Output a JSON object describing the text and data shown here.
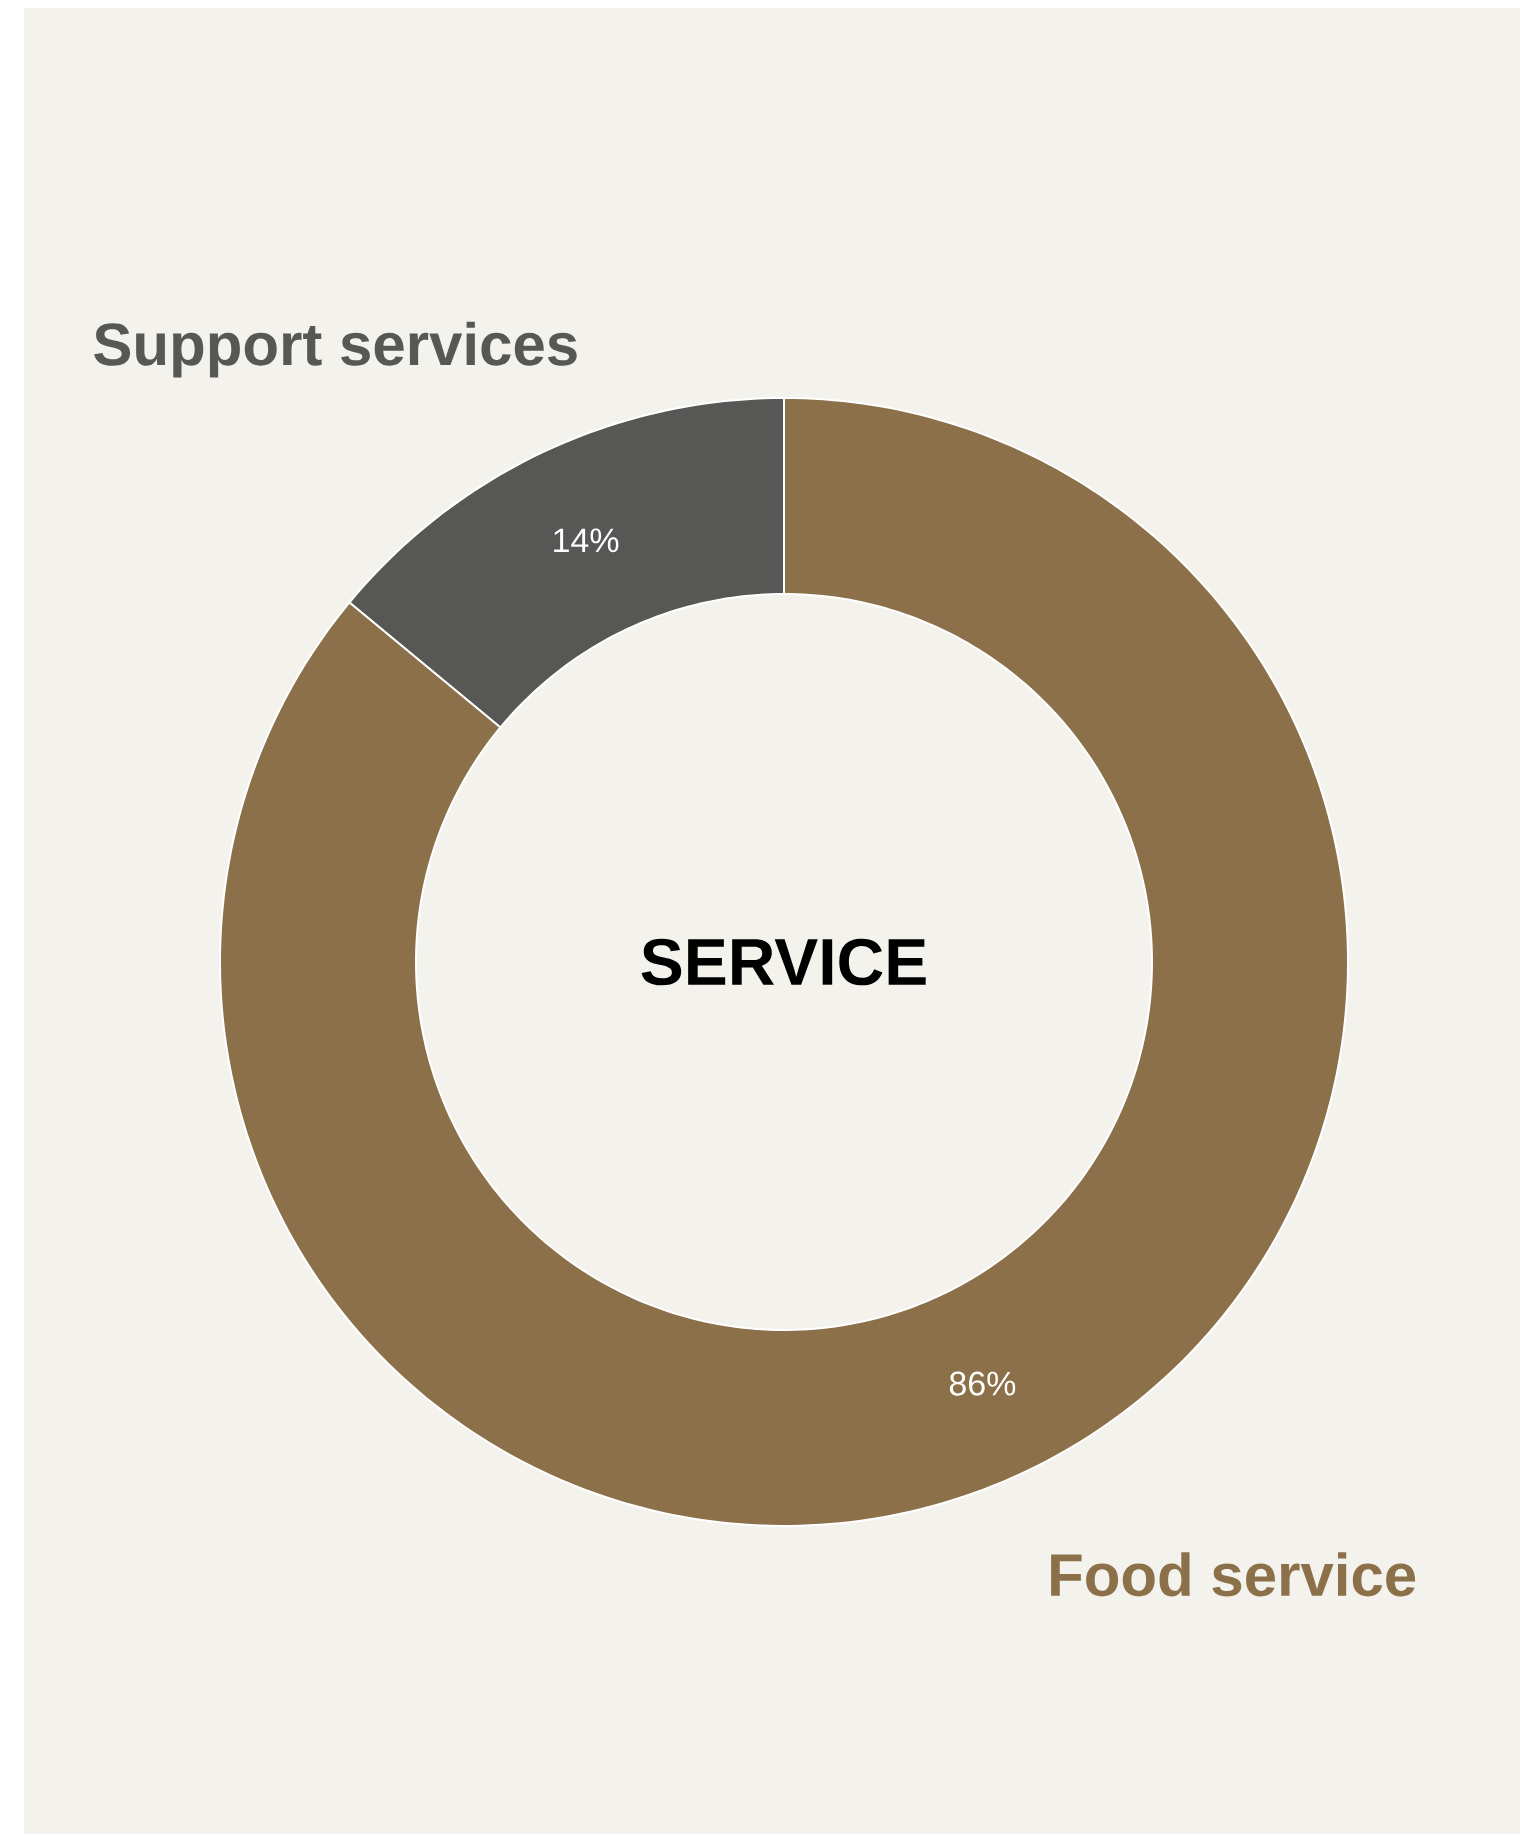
{
  "chart_data": {
    "type": "donut",
    "title": "SERVICE",
    "categories": [
      "Support services",
      "Food service"
    ],
    "values": [
      14,
      86
    ],
    "colors": [
      "#575755",
      "#8b7049"
    ],
    "value_labels": [
      "14%",
      "86%"
    ]
  }
}
